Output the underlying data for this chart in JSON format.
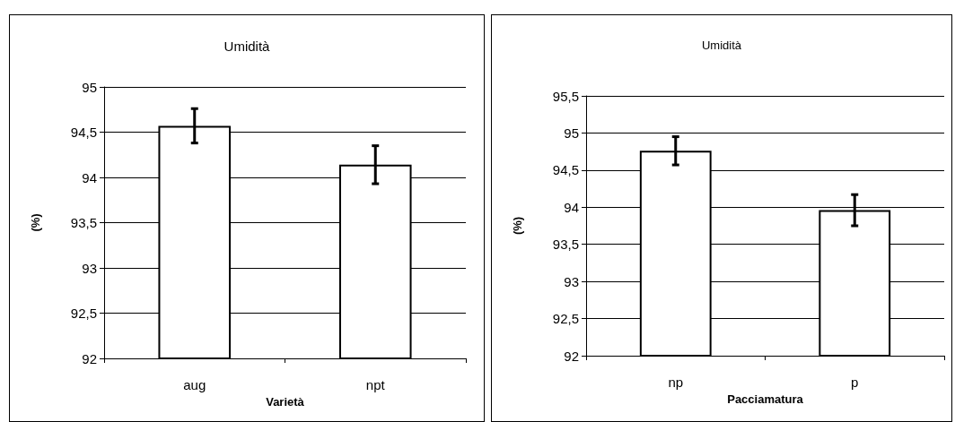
{
  "chart_data": [
    {
      "type": "bar",
      "title": "Umidità",
      "xlabel": "Varietà",
      "ylabel": "(%)",
      "categories": [
        "aug",
        "npt"
      ],
      "values": [
        94.57,
        94.14
      ],
      "errors": [
        0.19,
        0.21
      ],
      "color": "#ffffff",
      "ylim": [
        92,
        95
      ],
      "yticks": [
        92,
        {
          "value": 92.5,
          "label": "92,5"
        },
        93,
        {
          "value": 93.5,
          "label": "93,5"
        },
        94,
        {
          "value": 94.5,
          "label": "94,5"
        },
        95
      ],
      "grid": "y"
    },
    {
      "type": "bar",
      "title": "Umidità",
      "xlabel": "Pacciamatura",
      "ylabel": "(%)",
      "categories": [
        "np",
        "p"
      ],
      "values": [
        94.76,
        93.96
      ],
      "errors": [
        0.19,
        0.21
      ],
      "color": "#ffffff",
      "ylim": [
        92,
        95.5
      ],
      "yticks": [
        92,
        {
          "value": 92.5,
          "label": "92,5"
        },
        93,
        {
          "value": 93.5,
          "label": "93,5"
        },
        94,
        {
          "value": 94.5,
          "label": "94,5"
        },
        95,
        {
          "value": 95.5,
          "label": "95,5"
        }
      ],
      "grid": "y"
    }
  ]
}
